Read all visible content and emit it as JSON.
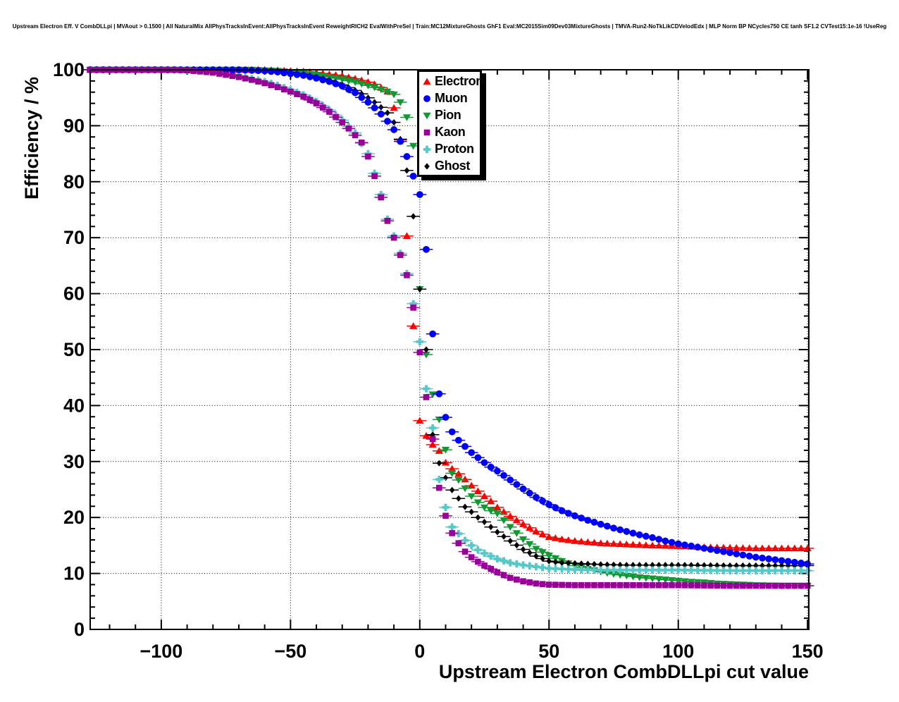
{
  "title": "Upstream Electron Eff. V CombDLLpi | MVAout > 0.1500 | All NaturalMix AllPhysTracksInEvent:AllPhysTracksInEvent ReweightRICH2 EvalWithPreSel | Train:MC12MixtureGhosts GhF1 Eval:MC2015Sim09Dev03MixtureGhosts | TMVA-Run2-NoTkLikCDVelodEdx | MLP Norm BP NCycles750 CE tanh SF1.2 CVTest15:1e-16 !UseReg",
  "chart_data": {
    "type": "scatter",
    "title": "",
    "xlabel": "Upstream Electron CombDLLpi cut value",
    "ylabel": "Efficiency / %",
    "xlim": [
      -127.5,
      150.5
    ],
    "ylim": [
      0,
      100
    ],
    "grid": "dotted",
    "legend_position": "upper-middle",
    "marker_x_spacing": 2.5,
    "x_error_halfwidth": 2,
    "x_ticks": [
      {
        "v": -100,
        "label": "−100"
      },
      {
        "v": -50,
        "label": "−50"
      },
      {
        "v": 0,
        "label": "0"
      },
      {
        "v": 50,
        "label": "50"
      },
      {
        "v": 100,
        "label": "100"
      },
      {
        "v": 150,
        "label": "150"
      }
    ],
    "x_minor_step": 10,
    "y_ticks": [
      {
        "v": 0,
        "label": "0"
      },
      {
        "v": 10,
        "label": "10"
      },
      {
        "v": 20,
        "label": "20"
      },
      {
        "v": 30,
        "label": "30"
      },
      {
        "v": 40,
        "label": "40"
      },
      {
        "v": 50,
        "label": "50"
      },
      {
        "v": 60,
        "label": "60"
      },
      {
        "v": 70,
        "label": "70"
      },
      {
        "v": 80,
        "label": "80"
      },
      {
        "v": 90,
        "label": "90"
      },
      {
        "v": 100,
        "label": "100"
      }
    ],
    "y_minor_step": 2,
    "series": [
      {
        "name": "Electron",
        "color": "#FF0000",
        "marker": "triangle-up",
        "points": [
          [
            -127.5,
            100
          ],
          [
            -60,
            100
          ],
          [
            -55,
            99.9
          ],
          [
            -50,
            99.8
          ],
          [
            -45,
            99.7
          ],
          [
            -40,
            99.5
          ],
          [
            -35,
            99.2
          ],
          [
            -30,
            98.9
          ],
          [
            -25,
            98.4
          ],
          [
            -20,
            97.8
          ],
          [
            -17.5,
            97.4
          ],
          [
            -15,
            96.8
          ],
          [
            -12.5,
            96.1
          ],
          [
            -10,
            93.2
          ],
          [
            -7.5,
            87.5
          ],
          [
            -5,
            70.3
          ],
          [
            -2.5,
            54.2
          ],
          [
            0,
            37.3
          ],
          [
            2.5,
            34.6
          ],
          [
            5,
            33
          ],
          [
            7.5,
            31.9
          ],
          [
            10,
            29.8
          ],
          [
            12.5,
            28.7
          ],
          [
            15,
            27.8
          ],
          [
            17.5,
            26.8
          ],
          [
            20,
            25.7
          ],
          [
            22.5,
            24.7
          ],
          [
            25,
            23.8
          ],
          [
            27.5,
            22.9
          ],
          [
            30,
            21.8
          ],
          [
            35,
            20.2
          ],
          [
            40,
            18.8
          ],
          [
            45,
            17.5
          ],
          [
            50,
            16.5
          ],
          [
            55,
            16.1
          ],
          [
            60,
            15.8
          ],
          [
            65,
            15.6
          ],
          [
            70,
            15.4
          ],
          [
            75,
            15.3
          ],
          [
            80,
            15.2
          ],
          [
            85,
            15.1
          ],
          [
            90,
            15
          ],
          [
            100,
            14.9
          ],
          [
            110,
            14.7
          ],
          [
            120,
            14.6
          ],
          [
            130,
            14.5
          ],
          [
            150,
            14.5
          ]
        ]
      },
      {
        "name": "Muon",
        "color": "#0000FF",
        "marker": "circle",
        "points": [
          [
            -127.5,
            100
          ],
          [
            -70,
            100
          ],
          [
            -65,
            99.9
          ],
          [
            -60,
            99.8
          ],
          [
            -55,
            99.6
          ],
          [
            -50,
            99.3
          ],
          [
            -45,
            99
          ],
          [
            -40,
            98.5
          ],
          [
            -35,
            97.9
          ],
          [
            -30,
            97.1
          ],
          [
            -25,
            95.9
          ],
          [
            -20,
            94.2
          ],
          [
            -17.5,
            93.2
          ],
          [
            -15,
            92.1
          ],
          [
            -12.5,
            90.8
          ],
          [
            -10,
            89.3
          ],
          [
            -7.5,
            87.2
          ],
          [
            -5,
            84.5
          ],
          [
            -2.5,
            81
          ],
          [
            0,
            77.7
          ],
          [
            2.5,
            67.9
          ],
          [
            5,
            52.8
          ],
          [
            7.5,
            42.1
          ],
          [
            10,
            37.9
          ],
          [
            12.5,
            35.3
          ],
          [
            15,
            33.8
          ],
          [
            17.5,
            32.7
          ],
          [
            20,
            31.6
          ],
          [
            22.5,
            30.7
          ],
          [
            25,
            29.8
          ],
          [
            27.5,
            29
          ],
          [
            30,
            28.3
          ],
          [
            35,
            26.7
          ],
          [
            40,
            25.1
          ],
          [
            45,
            23.6
          ],
          [
            50,
            22.3
          ],
          [
            55,
            21.2
          ],
          [
            60,
            20.3
          ],
          [
            65,
            19.5
          ],
          [
            70,
            18.8
          ],
          [
            75,
            18.1
          ],
          [
            80,
            17.5
          ],
          [
            85,
            16.9
          ],
          [
            90,
            16.4
          ],
          [
            95,
            15.8
          ],
          [
            100,
            15.3
          ],
          [
            105,
            14.9
          ],
          [
            110,
            14.5
          ],
          [
            115,
            14.1
          ],
          [
            120,
            13.7
          ],
          [
            125,
            13.3
          ],
          [
            130,
            12.9
          ],
          [
            135,
            12.6
          ],
          [
            140,
            12.3
          ],
          [
            145,
            12
          ],
          [
            150,
            11.7
          ]
        ]
      },
      {
        "name": "Pion",
        "color": "#109933",
        "marker": "triangle-down",
        "points": [
          [
            -127.5,
            100
          ],
          [
            -65,
            100
          ],
          [
            -60,
            99.9
          ],
          [
            -55,
            99.8
          ],
          [
            -50,
            99.6
          ],
          [
            -45,
            99.4
          ],
          [
            -40,
            99.1
          ],
          [
            -35,
            98.7
          ],
          [
            -30,
            98.3
          ],
          [
            -25,
            97.8
          ],
          [
            -20,
            97.2
          ],
          [
            -15,
            96.5
          ],
          [
            -12.5,
            96.1
          ],
          [
            -10,
            95.6
          ],
          [
            -7.5,
            94.2
          ],
          [
            -5,
            91.5
          ],
          [
            -2.5,
            86.4
          ],
          [
            0,
            60.8
          ],
          [
            2.5,
            49.1
          ],
          [
            5,
            42
          ],
          [
            7.5,
            37.5
          ],
          [
            10,
            32.1
          ],
          [
            12.5,
            27.9
          ],
          [
            15,
            26.7
          ],
          [
            17.5,
            25.2
          ],
          [
            20,
            23.8
          ],
          [
            22.5,
            22.7
          ],
          [
            25,
            21.8
          ],
          [
            27.5,
            21.2
          ],
          [
            30,
            20.7
          ],
          [
            35,
            18.3
          ],
          [
            40,
            16.1
          ],
          [
            45,
            14.4
          ],
          [
            50,
            13.2
          ],
          [
            55,
            12.2
          ],
          [
            60,
            11.4
          ],
          [
            65,
            10.8
          ],
          [
            70,
            10.3
          ],
          [
            75,
            9.9
          ],
          [
            80,
            9.6
          ],
          [
            85,
            9.3
          ],
          [
            90,
            9.1
          ],
          [
            95,
            8.9
          ],
          [
            100,
            8.7
          ],
          [
            105,
            8.5
          ],
          [
            110,
            8.4
          ],
          [
            115,
            8.2
          ],
          [
            120,
            8.1
          ],
          [
            125,
            8
          ],
          [
            130,
            7.9
          ],
          [
            140,
            7.8
          ],
          [
            150,
            7.8
          ]
        ]
      },
      {
        "name": "Kaon",
        "color": "#990099",
        "marker": "square",
        "points": [
          [
            -127.5,
            100
          ],
          [
            -95,
            100
          ],
          [
            -90,
            99.9
          ],
          [
            -85,
            99.7
          ],
          [
            -80,
            99.5
          ],
          [
            -75,
            99.1
          ],
          [
            -70,
            98.7
          ],
          [
            -65,
            98.2
          ],
          [
            -60,
            97.6
          ],
          [
            -55,
            96.9
          ],
          [
            -50,
            96.1
          ],
          [
            -45,
            95.2
          ],
          [
            -40,
            94
          ],
          [
            -35,
            92.5
          ],
          [
            -30,
            90.6
          ],
          [
            -27.5,
            89.5
          ],
          [
            -25,
            88.3
          ],
          [
            -22.5,
            87
          ],
          [
            -20,
            84.5
          ],
          [
            -17.5,
            81
          ],
          [
            -15,
            77.2
          ],
          [
            -12.5,
            73
          ],
          [
            -10,
            70
          ],
          [
            -7.5,
            66.9
          ],
          [
            -5,
            63.3
          ],
          [
            -2.5,
            57.5
          ],
          [
            0,
            49.5
          ],
          [
            2.5,
            41.5
          ],
          [
            5,
            34
          ],
          [
            7.5,
            25.3
          ],
          [
            10,
            20.3
          ],
          [
            12.5,
            17.2
          ],
          [
            15,
            15.4
          ],
          [
            17.5,
            13.9
          ],
          [
            20,
            12.9
          ],
          [
            22.5,
            12.1
          ],
          [
            25,
            11.4
          ],
          [
            27.5,
            10.8
          ],
          [
            30,
            10.2
          ],
          [
            35,
            9.2
          ],
          [
            40,
            8.6
          ],
          [
            45,
            8.2
          ],
          [
            50,
            8
          ],
          [
            60,
            7.9
          ],
          [
            80,
            7.9
          ],
          [
            100,
            7.9
          ],
          [
            120,
            7.8
          ],
          [
            150,
            7.8
          ]
        ]
      },
      {
        "name": "Proton",
        "color": "#55C8C8",
        "marker": "cross",
        "points": [
          [
            -127.5,
            100
          ],
          [
            -95,
            100
          ],
          [
            -90,
            99.9
          ],
          [
            -85,
            99.8
          ],
          [
            -80,
            99.6
          ],
          [
            -75,
            99.3
          ],
          [
            -70,
            98.9
          ],
          [
            -65,
            98.4
          ],
          [
            -60,
            97.9
          ],
          [
            -55,
            97.2
          ],
          [
            -50,
            96.4
          ],
          [
            -45,
            95.5
          ],
          [
            -40,
            94.3
          ],
          [
            -35,
            92.8
          ],
          [
            -30,
            91
          ],
          [
            -25,
            88.7
          ],
          [
            -20,
            85
          ],
          [
            -17.5,
            81.5
          ],
          [
            -15,
            77.7
          ],
          [
            -12.5,
            73.3
          ],
          [
            -10,
            70.3
          ],
          [
            -7.5,
            67.2
          ],
          [
            -5,
            63.6
          ],
          [
            -2.5,
            58.2
          ],
          [
            0,
            51.4
          ],
          [
            2.5,
            43
          ],
          [
            5,
            36
          ],
          [
            7.5,
            26.8
          ],
          [
            10,
            21.8
          ],
          [
            12.5,
            18.3
          ],
          [
            15,
            17.1
          ],
          [
            17.5,
            15.9
          ],
          [
            20,
            15
          ],
          [
            22.5,
            14.2
          ],
          [
            25,
            13.6
          ],
          [
            27.5,
            13.1
          ],
          [
            30,
            12.6
          ],
          [
            35,
            11.9
          ],
          [
            40,
            11.5
          ],
          [
            45,
            11.2
          ],
          [
            50,
            10.9
          ],
          [
            55,
            10.8
          ],
          [
            60,
            10.7
          ],
          [
            70,
            10.6
          ],
          [
            80,
            10.6
          ],
          [
            100,
            10.6
          ],
          [
            120,
            10.5
          ],
          [
            150,
            10.5
          ]
        ]
      },
      {
        "name": "Ghost",
        "color": "#000000",
        "marker": "diamond",
        "points": [
          [
            -127.5,
            100
          ],
          [
            -62.5,
            100
          ],
          [
            -60,
            99.9
          ],
          [
            -55,
            99.8
          ],
          [
            -50,
            99.5
          ],
          [
            -45,
            99.2
          ],
          [
            -40,
            98.7
          ],
          [
            -35,
            98.1
          ],
          [
            -30,
            97.3
          ],
          [
            -25,
            96.3
          ],
          [
            -22.5,
            95.7
          ],
          [
            -20,
            95
          ],
          [
            -17.5,
            94.2
          ],
          [
            -15,
            93.3
          ],
          [
            -12.5,
            92.3
          ],
          [
            -10,
            90.6
          ],
          [
            -7.5,
            87.6
          ],
          [
            -5,
            82
          ],
          [
            -2.5,
            73.8
          ],
          [
            0,
            60.8
          ],
          [
            2.5,
            50
          ],
          [
            5,
            34.8
          ],
          [
            7.5,
            29.7
          ],
          [
            10,
            27.1
          ],
          [
            12.5,
            24.9
          ],
          [
            15,
            23.4
          ],
          [
            17.5,
            21.9
          ],
          [
            20,
            21
          ],
          [
            22.5,
            20
          ],
          [
            25,
            19.2
          ],
          [
            27.5,
            18.3
          ],
          [
            30,
            17.4
          ],
          [
            35,
            15.8
          ],
          [
            40,
            14.3
          ],
          [
            45,
            13.1
          ],
          [
            50,
            12.2
          ],
          [
            55,
            11.9
          ],
          [
            60,
            11.8
          ],
          [
            70,
            11.6
          ],
          [
            80,
            11.5
          ],
          [
            100,
            11.5
          ],
          [
            120,
            11.4
          ],
          [
            150,
            11.4
          ]
        ]
      }
    ]
  }
}
